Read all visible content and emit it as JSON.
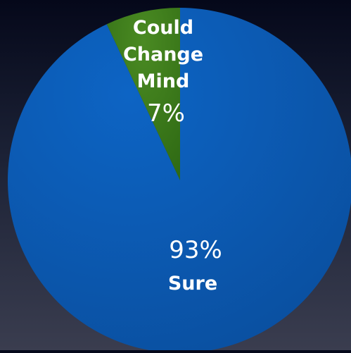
{
  "chart_data": {
    "type": "pie",
    "slices": [
      {
        "label": "Could Change Mind",
        "label_lines": [
          "Could",
          "Change",
          "Mind"
        ],
        "value": 7,
        "value_label": "7%",
        "color": "#3f7a1e"
      },
      {
        "label": "Sure",
        "label_lines": [
          "Sure"
        ],
        "value": 93,
        "value_label": "93%",
        "color": "#0a5ab4"
      }
    ]
  }
}
